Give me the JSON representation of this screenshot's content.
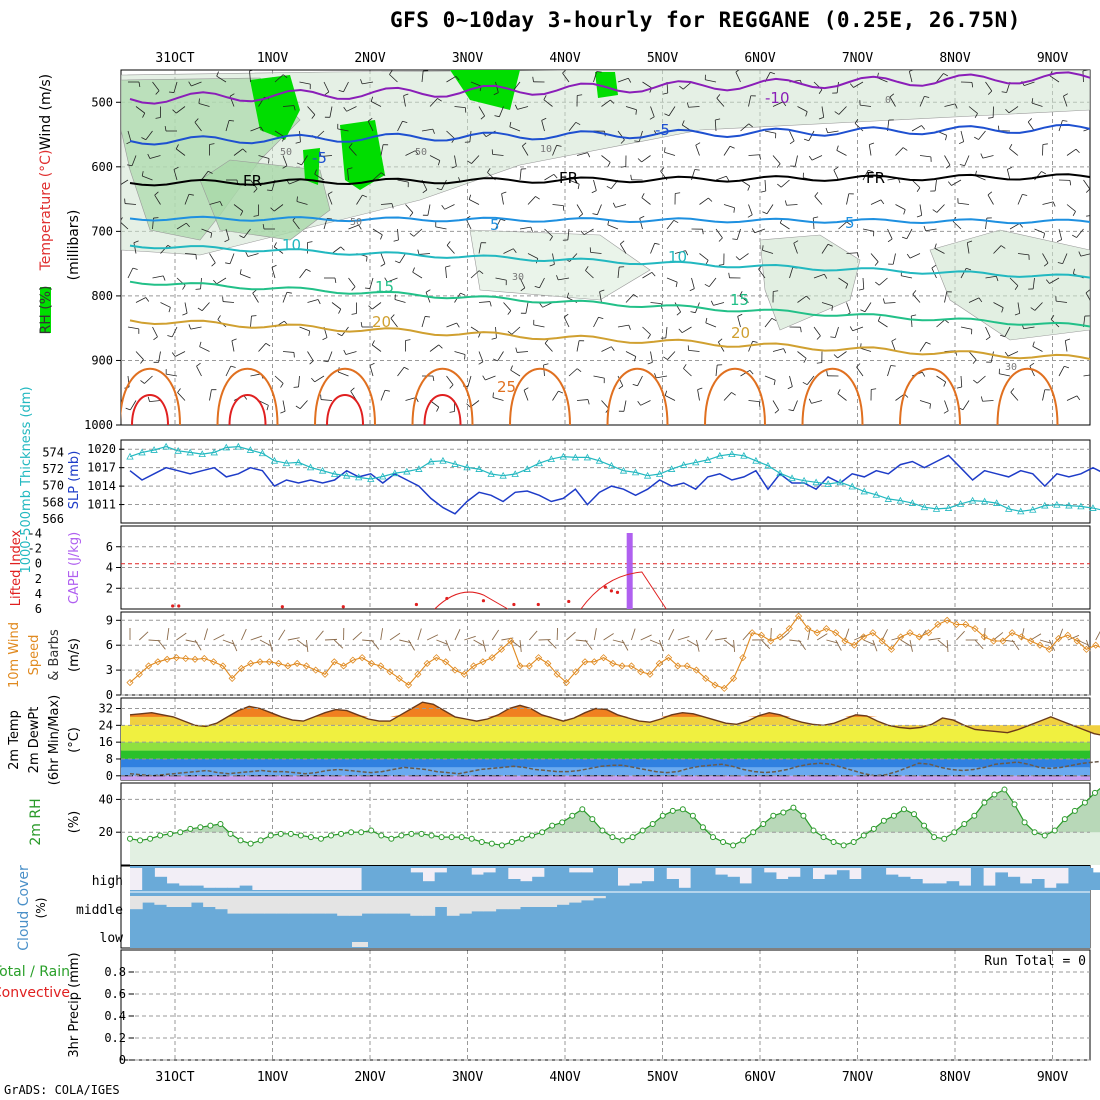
{
  "title": "GFS 0~10day 3-hourly for REGGANE (0.25E, 26.75N)",
  "credit": "GrADS: COLA/IGES",
  "date_labels": [
    "31OCT",
    "1NOV",
    "2NOV",
    "3NOV",
    "4NOV",
    "5NOV",
    "6NOV",
    "7NOV",
    "8NOV",
    "9NOV"
  ],
  "colors": {
    "grid": "#999999",
    "temp_green": "#00dd00",
    "slp": "#1e3cc8",
    "thick": "#22b8c0",
    "cape": "#b060f0",
    "li": "#e02020",
    "wind": "#e08a20",
    "rh": "#2a9a2a",
    "cloud": "#6aaad8",
    "cloud_bg": "#f2eef6"
  },
  "chart_data": [
    {
      "id": "upper_air",
      "type": "contour",
      "ylabel_parts": {
        "rh": "RH (%)",
        "temp": "Temperature (°C)",
        "wind": "Wind (m/s)",
        "unit": "(millibars)"
      },
      "y_ticks": [
        500,
        600,
        700,
        800,
        900,
        1000
      ],
      "ylim": [
        1000,
        450
      ],
      "isotherm_labels": [
        {
          "text": "-10",
          "series": "-10"
        },
        {
          "text": "-5",
          "series": "-5"
        },
        {
          "text": "-5",
          "series": "-5"
        },
        {
          "text": "FR",
          "series": "0"
        },
        {
          "text": "FR",
          "series": "0"
        },
        {
          "text": "FR",
          "series": "0"
        },
        {
          "text": "5",
          "series": "5"
        },
        {
          "text": "5",
          "series": "5"
        },
        {
          "text": "10",
          "series": "10"
        },
        {
          "text": "10",
          "series": "10"
        },
        {
          "text": "15",
          "series": "15"
        },
        {
          "text": "15",
          "series": "15"
        },
        {
          "text": "20",
          "series": "20"
        },
        {
          "text": "20",
          "series": "20"
        },
        {
          "text": "25",
          "series": "25"
        }
      ],
      "rh_labels": [
        "50",
        "50",
        "50",
        "30",
        "10",
        "0",
        "30"
      ]
    },
    {
      "id": "slp_thickness",
      "type": "line",
      "ylabel_left": "1000-500mb Thickness (dm)",
      "ylabel_right": "SLP (mb)",
      "thick_ticks": [
        566,
        568,
        570,
        572,
        574
      ],
      "slp_ticks": [
        1011,
        1014,
        1017,
        1020
      ],
      "slp_ylim": [
        1008,
        1021.5
      ],
      "thick_ylim": [
        565.5,
        575.5
      ],
      "slp": [
        1016.5,
        1015,
        1016,
        1017,
        1016.5,
        1016,
        1016.5,
        1017,
        1015.5,
        1016,
        1017,
        1016.5,
        1014,
        1015,
        1014.5,
        1015,
        1014.5,
        1015,
        1016.5,
        1015.5,
        1016,
        1014.5,
        1016,
        1015,
        1014,
        1012,
        1010.5,
        1009.5,
        1011.5,
        1013,
        1012.5,
        1011.5,
        1013,
        1013.2,
        1012.5,
        1011.5,
        1012,
        1013.5,
        1011,
        1013,
        1014,
        1013.5,
        1012.5,
        1013.5,
        1015,
        1014,
        1014.5,
        1013.5,
        1015.5,
        1016,
        1015,
        1015.5,
        1016.5,
        1013.5,
        1016,
        1014.5,
        1014.5,
        1013.5,
        1015.5,
        1014.5,
        1016,
        1015.5,
        1016.5,
        1016,
        1017.5,
        1018,
        1017,
        1018,
        1019,
        1017,
        1015,
        1016.5,
        1016,
        1015.5,
        1016.5,
        1016,
        1014,
        1016,
        1015.5,
        1016,
        1017,
        1016
      ],
      "thickness": [
        573.5,
        574,
        574.3,
        574.7,
        574.2,
        574,
        573.8,
        574,
        574.6,
        574.7,
        574.3,
        573.9,
        573,
        572.7,
        572.8,
        572.2,
        571.8,
        571.4,
        571.2,
        571,
        570.8,
        571.1,
        571.5,
        571.7,
        572,
        572.9,
        573,
        572.6,
        572.2,
        572,
        571.4,
        571.2,
        571.4,
        572,
        572.7,
        573.2,
        573.5,
        573.4,
        573.4,
        573,
        572.4,
        571.8,
        571.6,
        571.2,
        571.4,
        572,
        572.5,
        572.8,
        573.1,
        573.6,
        573.8,
        573.6,
        573,
        572.4,
        571.5,
        570.9,
        570.6,
        570.4,
        570.2,
        570.4,
        569.9,
        569.3,
        568.9,
        568.4,
        568.2,
        567.9,
        567.4,
        567.2,
        567.3,
        567.8,
        568.2,
        568.1,
        567.9,
        567.2,
        566.9,
        567.1,
        567.6,
        567.7,
        567.6,
        567.5,
        567.3,
        567
      ]
    },
    {
      "id": "cape_li",
      "type": "bar+line",
      "ylabel_left": "Lifted Index",
      "ylabel_right": "CAPE (J/kg)",
      "li_ticks": [
        "-4",
        "-2",
        "0",
        "2",
        "4",
        "6"
      ],
      "cape_ticks": [
        2,
        4,
        6
      ],
      "cape_bar_x": 41,
      "li_points": [
        [
          7,
          5.6
        ],
        [
          8,
          5.6
        ],
        [
          25,
          5.7
        ],
        [
          35,
          5.7
        ],
        [
          47,
          5.4
        ],
        [
          52,
          4.6
        ],
        [
          58,
          4.9
        ],
        [
          63,
          5.4
        ],
        [
          67,
          5.4
        ],
        [
          72,
          5
        ],
        [
          78,
          3.1
        ],
        [
          79,
          3.6
        ],
        [
          80,
          3.8
        ]
      ],
      "li_zero_line": true
    },
    {
      "id": "wind10",
      "type": "line",
      "ylabel_parts": {
        "wind": "10m Wind",
        "speed": "Speed",
        "barbs": "& Barbs",
        "unit": "(m/s)"
      },
      "y_ticks": [
        0,
        3,
        6,
        9
      ],
      "ylim": [
        0,
        10
      ],
      "speed": [
        1.5,
        2.5,
        3.5,
        4,
        4.3,
        4.5,
        4.4,
        4.3,
        4.4,
        4,
        3.5,
        2,
        3.2,
        3.8,
        4,
        4,
        3.8,
        3.5,
        3.8,
        3.5,
        3,
        2.5,
        4,
        3.5,
        4.2,
        4.5,
        3.8,
        3.5,
        2.8,
        2,
        1.2,
        2.5,
        3.8,
        4.5,
        4,
        3,
        2.5,
        3.5,
        4,
        4.5,
        5.5,
        6.5,
        3.5,
        3.5,
        4.5,
        3.8,
        2.5,
        1.5,
        2.8,
        4,
        4,
        4.5,
        3.8,
        3.5,
        3.5,
        2.8,
        2.5,
        3.8,
        4.5,
        3.5,
        3.5,
        3,
        2,
        1.2,
        0.8,
        2,
        4.5,
        7.5,
        7.2,
        6.5,
        7,
        8,
        9.5,
        8,
        7.5,
        8,
        7.5,
        6.5,
        6,
        7,
        7.5,
        6.5,
        5.5,
        7,
        7.5,
        7,
        7.5,
        8.5,
        9,
        8.5,
        8.5,
        8,
        7,
        6.5,
        6.5,
        7.5,
        7,
        6.5,
        6,
        5.5,
        6.8,
        7.2,
        6.5,
        5.5,
        6,
        5.5
      ]
    },
    {
      "id": "temp2m",
      "type": "area",
      "ylabel_parts": {
        "temp": "2m Temp",
        "dew": "2m DewPt",
        "minmax": "(6hr Min/Max)",
        "unit": "(°C)"
      },
      "y_ticks": [
        0,
        8,
        16,
        24,
        32
      ],
      "ylim": [
        -2,
        37
      ],
      "temp": [
        29,
        29.5,
        30,
        29,
        28,
        26,
        24,
        23.5,
        25,
        28,
        31,
        33,
        32,
        30,
        28,
        26.5,
        26,
        28,
        30,
        31.5,
        31,
        29,
        27,
        26,
        26,
        29,
        32,
        35,
        34,
        31,
        28,
        27,
        26,
        27,
        29,
        32,
        33.5,
        32,
        29,
        27.5,
        26,
        27.5,
        30,
        32,
        31.5,
        29,
        27.5,
        26,
        25.5,
        27,
        29,
        30,
        29.5,
        28,
        26.5,
        25,
        24.5,
        26,
        28.5,
        30,
        29,
        27,
        25.5,
        24.5,
        24,
        25,
        27,
        29,
        28.5,
        26,
        24,
        23,
        22.5,
        23,
        24.5,
        27.5,
        26.5,
        24,
        22,
        21.5,
        21,
        20.5,
        22,
        24,
        26,
        28,
        26,
        24,
        22,
        20,
        19
      ],
      "dewpoint": [
        1,
        0.5,
        0,
        0.5,
        1,
        1.5,
        2,
        2.5,
        1.5,
        1,
        1.5,
        2,
        2.5,
        2,
        2,
        1.5,
        1,
        1.5,
        2.5,
        3,
        2.5,
        2,
        1.5,
        2,
        3,
        4,
        3.5,
        3,
        2,
        1.5,
        1,
        2,
        3,
        3.5,
        4,
        4.5,
        4,
        3,
        2.5,
        2,
        2,
        2.5,
        3.5,
        4.5,
        5,
        5,
        4,
        3,
        2,
        1.5,
        2,
        3.5,
        4.5,
        5,
        5.5,
        4.5,
        3,
        2,
        1.5,
        2,
        3,
        4.5,
        5.5,
        6,
        5.5,
        4,
        2.5,
        1,
        0,
        0.5,
        2,
        4,
        6,
        5.5,
        4,
        3,
        2.5,
        3,
        4,
        5.5,
        6,
        6.5,
        5.5,
        4,
        3.5,
        4,
        5,
        6,
        6.5,
        7
      ],
      "band_colors": [
        "#c8a0f0",
        "#6aaaf0",
        "#3080e0",
        "#2ac02a",
        "#90e040",
        "#f0f040"
      ]
    },
    {
      "id": "rh2m",
      "type": "area",
      "ylabel_parts": {
        "rh": "2m RH",
        "unit": "(%)"
      },
      "y_ticks": [
        20,
        40
      ],
      "ylim": [
        0,
        50
      ],
      "rh": [
        16,
        15,
        16,
        18,
        19,
        20,
        22,
        23,
        24,
        25,
        19,
        15,
        13,
        15,
        18,
        19,
        19,
        18,
        17,
        16,
        18,
        19,
        20,
        20,
        21,
        18,
        16,
        18,
        19,
        19,
        18,
        17,
        17,
        17,
        16,
        14,
        13,
        12,
        14,
        16,
        18,
        20,
        24,
        26,
        30,
        34,
        28,
        21,
        17,
        15,
        17,
        21,
        25,
        30,
        33,
        34,
        30,
        23,
        17,
        14,
        12,
        15,
        20,
        25,
        30,
        32,
        35,
        30,
        21,
        17,
        14,
        12,
        14,
        18,
        22,
        27,
        30,
        34,
        31,
        24,
        17,
        16,
        20,
        25,
        30,
        38,
        43,
        46,
        37,
        26,
        20,
        18,
        21,
        28,
        33,
        38,
        44,
        49
      ]
    },
    {
      "id": "cloud",
      "type": "heatmap",
      "ylabel": "Cloud Cover",
      "unit": "(%)",
      "levels": [
        "high",
        "middle",
        "low"
      ]
    },
    {
      "id": "precip",
      "type": "bar",
      "ylabel_left_parts": {
        "total": "Total / Rain",
        "conv": "Convective"
      },
      "ylabel": "3hr Precip (mm)",
      "y_ticks": [
        "0",
        "0.2",
        "0.4",
        "0.6",
        "0.8"
      ],
      "ylim": [
        0,
        1
      ],
      "run_total": "Run Total = 0",
      "values": []
    }
  ]
}
